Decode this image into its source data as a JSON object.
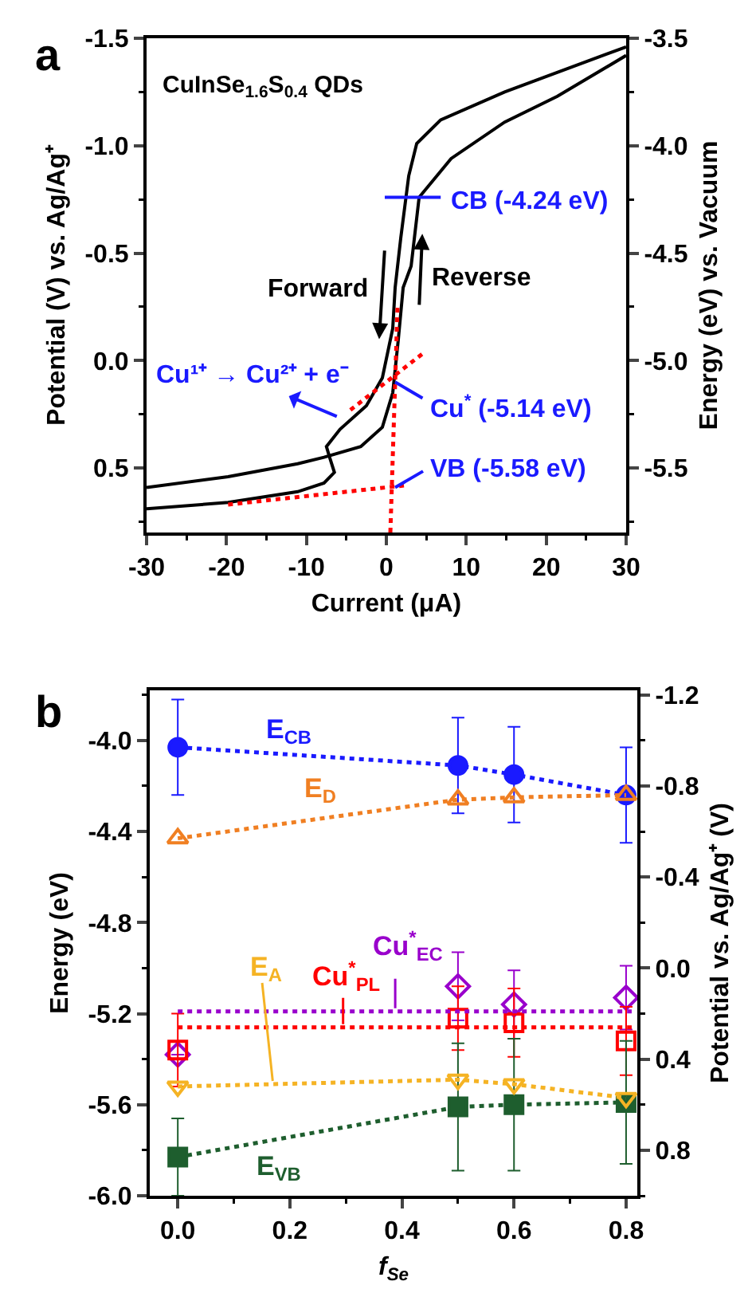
{
  "chart_data": [
    {
      "type": "line",
      "xlabel": "Current (μA)",
      "ylabel": "Potential (V) vs. Ag/Ag⁺",
      "y2label": "Energy (eV) vs. Vacuum",
      "xlim": [
        -30,
        30
      ],
      "xticks": [
        -30,
        -20,
        -10,
        0,
        10,
        20,
        30
      ],
      "ylim": [
        0.8,
        -1.5
      ],
      "yticks": [
        -1.5,
        {
          "value": -1,
          "label": "-1.0"
        },
        -0.5,
        {
          "value": 0,
          "label": "0.0"
        },
        0.5
      ],
      "y2lim": [
        -5.8,
        -3.5
      ],
      "y2ticks": [
        -3.5,
        {
          "value": -4,
          "label": "-4.0"
        },
        -4.5,
        {
          "value": -5,
          "label": "-5.0"
        },
        -5.5
      ],
      "grid": false,
      "legend": false,
      "marker": "none",
      "annotations": [
        "a",
        "CuInSe$_{1.6}$S$_{0.4}$ QDs",
        "Forward",
        {
          "text": "Reverse",
          "x": 4.5,
          "y": -0.59
        },
        {
          "text": "CB (-4.24 eV)",
          "x": 6.8,
          "y": -0.76
        },
        "Cu¹⁺ → Cu²⁺ + e⁻",
        {
          "text": "Cu$^{*}$ (-5.14 eV)",
          "x": 1.1,
          "y": 0.1
        },
        {
          "text": "VB (-5.58 eV)",
          "x": 1.1,
          "y": 0.59
        }
      ],
      "series": [
        {
          "color": "#000000",
          "line_style": "solid",
          "x": [
            -30,
            -19.8,
            -11.1,
            -7.8,
            -6.5,
            -7.1,
            -7.5,
            -5.8,
            -2.5,
            -0.5,
            0.8,
            1.1,
            1.8,
            2.8,
            3.8,
            6.8,
            14.8,
            30
          ],
          "values": [
            0.69,
            0.66,
            0.61,
            0.57,
            0.52,
            0.45,
            0.4,
            0.32,
            0.21,
            0.08,
            -0.15,
            -0.34,
            -0.57,
            -0.86,
            -1.01,
            -1.12,
            -1.25,
            -1.46
          ]
        },
        {
          "color": "#000000",
          "line_style": "solid",
          "x": [
            -30,
            -19.8,
            -11.1,
            -7.8,
            -3.2,
            -0.5,
            0.8,
            1.5,
            2.1,
            3.1,
            4.1,
            8.1,
            14.8,
            21.4,
            30
          ],
          "values": [
            0.59,
            0.54,
            0.48,
            0.45,
            0.4,
            0.31,
            0.15,
            -0.1,
            -0.34,
            -0.44,
            -0.76,
            -0.94,
            -1.11,
            -1.23,
            -1.42
          ]
        },
        {
          "color": "#1a1aff",
          "line_style": "solid",
          "x": [
            -0.2,
            6.8
          ],
          "values": [
            -0.76,
            -0.76
          ]
        },
        {
          "color": "#ff0000",
          "line_style": "dotted",
          "x": [
            0.5,
            1.4
          ],
          "values": [
            0.8,
            -0.25
          ]
        },
        {
          "color": "#ff0000",
          "line_style": "dotted",
          "x": [
            -4.5,
            4.8
          ],
          "values": [
            0.23,
            -0.04
          ]
        },
        {
          "color": "#ff0000",
          "line_style": "dotted",
          "x": [
            -19.8,
            2.5
          ],
          "values": [
            0.67,
            0.58
          ]
        }
      ]
    },
    {
      "type": "line",
      "xlabel": "f$_{Se}$",
      "ylabel": "Energy (eV)",
      "y2label": "Potential vs. Ag/Ag⁺ (V)",
      "x": [
        0,
        0.5,
        0.6,
        0.8
      ],
      "xlim": [
        -0.05,
        0.82
      ],
      "xticks": [
        {
          "value": 0,
          "label": "0.0"
        },
        0.2,
        0.4,
        0.6,
        0.8
      ],
      "ylim": [
        -6.0,
        -3.78
      ],
      "yticks": [
        {
          "value": -4,
          "label": "-4.0"
        },
        -4.4,
        -4.8,
        -5.2,
        -5.6,
        {
          "value": -6,
          "label": "-6.0"
        }
      ],
      "y2lim": [
        1.0,
        -1.22
      ],
      "y2ticks": [
        -1.2,
        -0.8,
        -0.4,
        {
          "value": 0,
          "label": "0.0"
        },
        0.4,
        0.8
      ],
      "grid": false,
      "legend": false,
      "annotations": [
        "b"
      ],
      "series": [
        {
          "name": "E$_{CB}$",
          "color": "#1a1aff",
          "marker": "circle",
          "line_style": "dotted",
          "values": [
            -4.03,
            -4.11,
            -4.15,
            -4.24
          ],
          "errors": [
            0.21,
            0.21,
            0.21,
            0.21
          ]
        },
        {
          "name": "E$_{D}$",
          "color": "#f07f22",
          "marker": "triangle-open",
          "line_style": "dotted",
          "values": [
            -4.43,
            -4.26,
            -4.25,
            -4.24
          ]
        },
        {
          "type": "scatter",
          "color": "#9900cc",
          "marker": "diamond-open",
          "values": [
            -5.38,
            -5.08,
            -5.16,
            -5.13
          ],
          "errors": [
            null,
            0.15,
            0.15,
            0.14
          ]
        },
        {
          "type": "scatter",
          "color": "#ff0000",
          "marker": "square-open",
          "values": [
            -5.36,
            -5.22,
            -5.24,
            -5.32
          ],
          "errors": [
            0.16,
            0.14,
            0.15,
            0.15
          ]
        },
        {
          "name": "E$_{VB}$",
          "color": "#1e5e2e",
          "marker": "square",
          "line_style": "dotted",
          "values": [
            -5.83,
            -5.61,
            -5.6,
            -5.59
          ],
          "errors": [
            0.17,
            0.28,
            0.29,
            0.27
          ]
        },
        {
          "name": "E$_{A}$",
          "color": "#f5b324",
          "marker": "triangle-down-open",
          "line_style": "dotted",
          "values": [
            -5.52,
            -5.49,
            -5.51,
            -5.57
          ]
        },
        {
          "name": "Cu$^{*}$$_{EC}$",
          "color": "#9900cc",
          "marker": "none",
          "line_style": "dotted",
          "x": [
            0,
            0.81
          ],
          "values": [
            -5.19,
            -5.19
          ]
        },
        {
          "name": "Cu$^{*}$$_{PL}$",
          "color": "#ff0000",
          "marker": "none",
          "line_style": "dotted",
          "x": [
            0,
            0.81
          ],
          "values": [
            -5.26,
            -5.26
          ]
        }
      ]
    }
  ]
}
